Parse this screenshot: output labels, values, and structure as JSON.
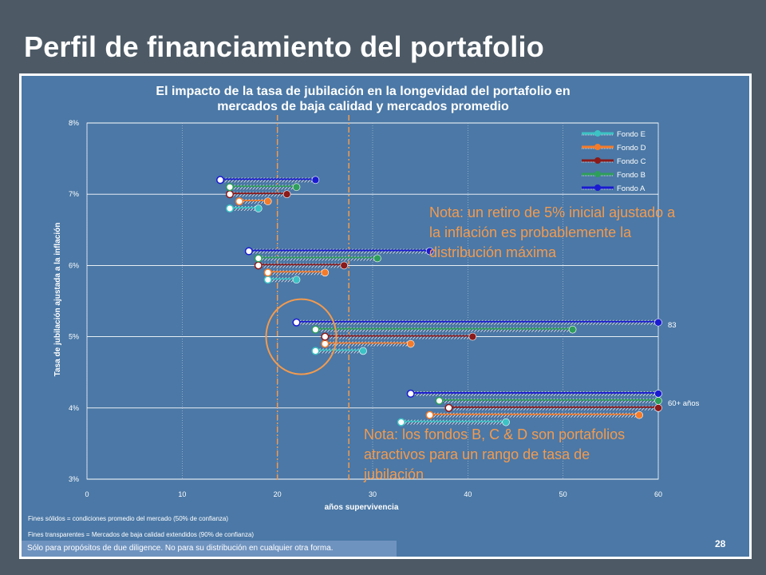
{
  "slide": {
    "title": "Perfil de financiamiento del portafolio",
    "page_number": "28",
    "disclaimer": "Sólo para propósitos de due diligence. No para su distribución en cualquier otra forma."
  },
  "notes": {
    "solid_ends": "Fines sólidos = condiciones promedio del mercado (50% de confianza)",
    "transparent_ends": "Fines transparentes = Mercados de baja calidad extendidos (90% de confianza)",
    "note_top": [
      "Nota: un retiro de 5% inicial ajustado a",
      "la inflación es probablemente la",
      "distribución máxima"
    ],
    "note_bottom": [
      "Nota: los fondos B, C & D son portafolios",
      "atractivos para un rango de tasa de",
      "jubilación"
    ]
  },
  "colors": {
    "panel_bg": "#4b78a6",
    "grid": "#ffffff",
    "note_text": "#f39a4e",
    "circle_outline": "#f39a4e",
    "reference_line": "#f39a4e"
  },
  "chart_data": {
    "type": "range-dot",
    "title": [
      "El impacto de la tasa de jubilación en la longevidad del portafolio en",
      "mercados de baja calidad y mercados promedio"
    ],
    "xlabel": "años supervivencia",
    "ylabel": "Tasa de jubilación ajustada a la inflación",
    "xlim": [
      0,
      60
    ],
    "ylim": [
      3,
      8
    ],
    "xticks": [
      "0",
      "10",
      "20",
      "30",
      "40",
      "50",
      "60"
    ],
    "yticks": [
      "3%",
      "4%",
      "5%",
      "6%",
      "7%",
      "8%"
    ],
    "legend_position": "top-right",
    "reference_lines_x": [
      20,
      27.5
    ],
    "annotations": [
      {
        "text": "83",
        "x": 60,
        "y": 5.2
      },
      {
        "text": "60+ años",
        "x": 60,
        "y": 4.1
      }
    ],
    "series": [
      {
        "name": "Fondo E",
        "color": "#3cc2c4",
        "points": [
          {
            "rate": 6.8,
            "low": 15,
            "avg": 18
          },
          {
            "rate": 5.8,
            "low": 19,
            "avg": 22
          },
          {
            "rate": 4.8,
            "low": 24,
            "avg": 29
          },
          {
            "rate": 3.8,
            "low": 33,
            "avg": 44
          }
        ]
      },
      {
        "name": "Fondo D",
        "color": "#f47b2a",
        "points": [
          {
            "rate": 6.9,
            "low": 16,
            "avg": 19
          },
          {
            "rate": 5.9,
            "low": 19,
            "avg": 25
          },
          {
            "rate": 4.9,
            "low": 25,
            "avg": 34
          },
          {
            "rate": 3.9,
            "low": 36,
            "avg": 58
          }
        ]
      },
      {
        "name": "Fondo C",
        "color": "#8b1a1a",
        "points": [
          {
            "rate": 7.0,
            "low": 15,
            "avg": 21
          },
          {
            "rate": 6.0,
            "low": 18,
            "avg": 27
          },
          {
            "rate": 5.0,
            "low": 25,
            "avg": 40.5
          },
          {
            "rate": 4.0,
            "low": 38,
            "avg": 60
          }
        ]
      },
      {
        "name": "Fondo B",
        "color": "#2e9e5b",
        "points": [
          {
            "rate": 7.1,
            "low": 15,
            "avg": 22
          },
          {
            "rate": 6.1,
            "low": 18,
            "avg": 30.5
          },
          {
            "rate": 5.1,
            "low": 24,
            "avg": 51
          },
          {
            "rate": 4.1,
            "low": 37,
            "avg": 60
          }
        ]
      },
      {
        "name": "Fondo A",
        "color": "#1a1ad1",
        "points": [
          {
            "rate": 7.2,
            "low": 14,
            "avg": 24
          },
          {
            "rate": 6.2,
            "low": 17,
            "avg": 36
          },
          {
            "rate": 5.2,
            "low": 22,
            "avg": 60
          },
          {
            "rate": 4.2,
            "low": 34,
            "avg": 60
          }
        ]
      }
    ]
  }
}
